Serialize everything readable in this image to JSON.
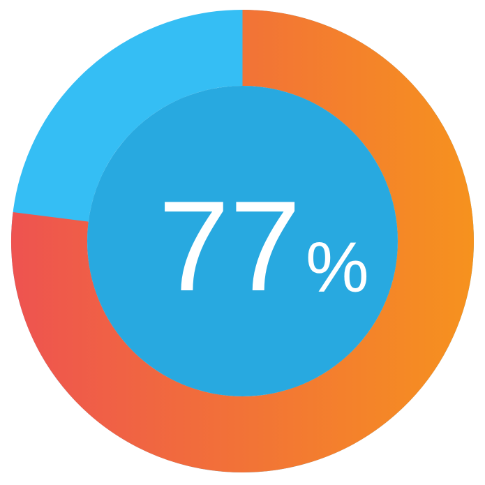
{
  "chart_data": {
    "type": "pie",
    "subtype": "donut-progress",
    "title": "",
    "percent": 77,
    "center_label": "77",
    "center_label_suffix": "%",
    "start_angle_deg": 0,
    "direction": "clockwise",
    "series": [
      {
        "name": "progress",
        "value": 77,
        "gradient": [
          "#EE5350",
          "#F6921E"
        ]
      },
      {
        "name": "remainder",
        "value": 23,
        "color": "#35BEF4"
      }
    ],
    "inner_circle_color": "#28A9E0",
    "text_color": "#FFFFFF",
    "background_color": "#FFFFFF",
    "legend": "none",
    "axes": "none"
  }
}
